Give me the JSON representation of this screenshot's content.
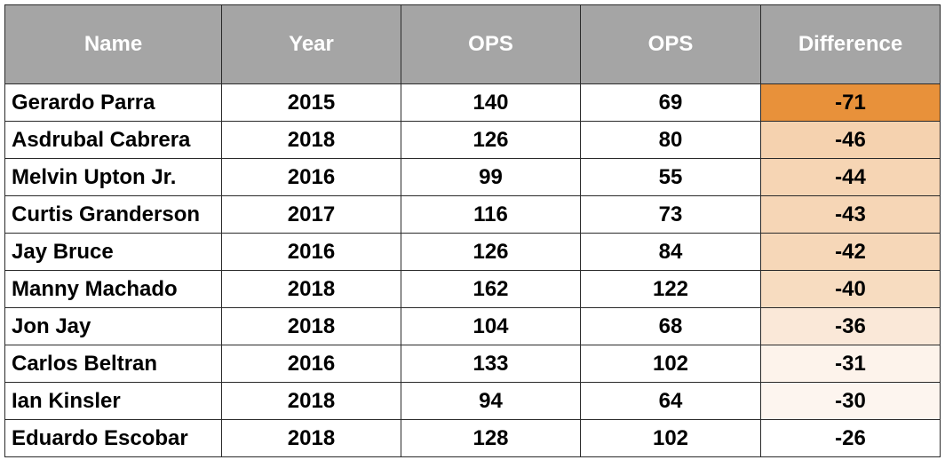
{
  "chart_data": {
    "type": "table",
    "columns": [
      "Name",
      "Year",
      "OPS",
      "OPS",
      "Difference"
    ],
    "rows": [
      [
        "Gerardo Parra",
        "2015",
        "140",
        "69",
        "-71"
      ],
      [
        "Asdrubal Cabrera",
        "2018",
        "126",
        "80",
        "-46"
      ],
      [
        "Melvin Upton Jr.",
        "2016",
        "99",
        "55",
        "-44"
      ],
      [
        "Curtis Granderson",
        "2017",
        "116",
        "73",
        "-43"
      ],
      [
        "Jay Bruce",
        "2016",
        "126",
        "84",
        "-42"
      ],
      [
        "Manny Machado",
        "2018",
        "162",
        "122",
        "-40"
      ],
      [
        "Jon Jay",
        "2018",
        "104",
        "68",
        "-36"
      ],
      [
        "Carlos Beltran",
        "2016",
        "133",
        "102",
        "-31"
      ],
      [
        "Ian Kinsler",
        "2018",
        "94",
        "64",
        "-30"
      ],
      [
        "Eduardo Escobar",
        "2018",
        "128",
        "102",
        "-26"
      ]
    ],
    "difference_colors": [
      "#e8913a",
      "#f5d2af",
      "#f6d5b4",
      "#f6d6b6",
      "#f6d7b8",
      "#f7dcc0",
      "#fae8d8",
      "#fdf3eb",
      "#fdf5ef",
      "#ffffff"
    ],
    "header_color": "#a5a5a5"
  }
}
